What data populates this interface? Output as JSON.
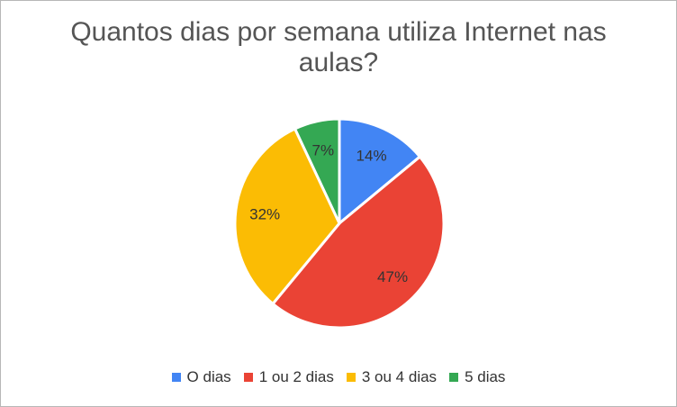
{
  "chart_data": {
    "type": "pie",
    "title": "Quantos dias por semana utiliza Internet nas aulas?",
    "categories": [
      "O dias",
      "1 ou 2 dias",
      "3 ou 4 dias",
      "5 dias"
    ],
    "values": [
      14,
      47,
      32,
      7
    ],
    "labels": [
      "14%",
      "47%",
      "32%",
      "7%"
    ],
    "colors": [
      "#4285f4",
      "#ea4335",
      "#fbbc04",
      "#34a853"
    ],
    "legend_position": "bottom"
  }
}
